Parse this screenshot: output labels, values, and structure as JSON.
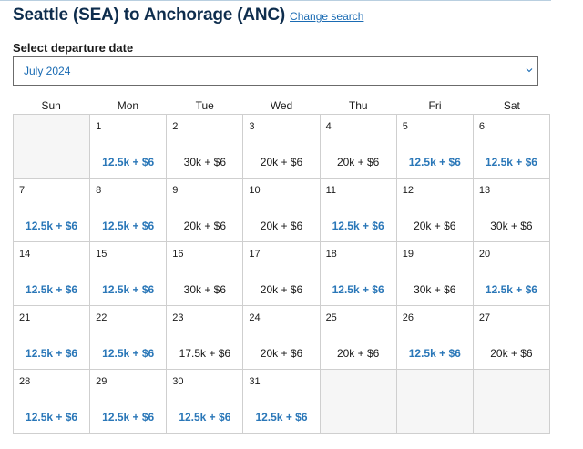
{
  "header": {
    "title": "Seattle (SEA) to Anchorage (ANC)",
    "change_link": "Change search"
  },
  "date_select": {
    "label": "Select departure date",
    "value": "July 2024"
  },
  "calendar": {
    "weekdays": [
      "Sun",
      "Mon",
      "Tue",
      "Wed",
      "Thu",
      "Fri",
      "Sat"
    ],
    "leading_blanks": 1,
    "trailing_blanks": 3,
    "low_fare_color": "#2a77b8",
    "days": [
      {
        "day": "1",
        "price": "12.5k + $6",
        "low": true
      },
      {
        "day": "2",
        "price": "30k + $6",
        "low": false
      },
      {
        "day": "3",
        "price": "20k + $6",
        "low": false
      },
      {
        "day": "4",
        "price": "20k + $6",
        "low": false
      },
      {
        "day": "5",
        "price": "12.5k + $6",
        "low": true
      },
      {
        "day": "6",
        "price": "12.5k + $6",
        "low": true
      },
      {
        "day": "7",
        "price": "12.5k + $6",
        "low": true
      },
      {
        "day": "8",
        "price": "12.5k + $6",
        "low": true
      },
      {
        "day": "9",
        "price": "20k + $6",
        "low": false
      },
      {
        "day": "10",
        "price": "20k + $6",
        "low": false
      },
      {
        "day": "11",
        "price": "12.5k + $6",
        "low": true
      },
      {
        "day": "12",
        "price": "20k + $6",
        "low": false
      },
      {
        "day": "13",
        "price": "30k + $6",
        "low": false
      },
      {
        "day": "14",
        "price": "12.5k + $6",
        "low": true
      },
      {
        "day": "15",
        "price": "12.5k + $6",
        "low": true
      },
      {
        "day": "16",
        "price": "30k + $6",
        "low": false
      },
      {
        "day": "17",
        "price": "20k + $6",
        "low": false
      },
      {
        "day": "18",
        "price": "12.5k + $6",
        "low": true
      },
      {
        "day": "19",
        "price": "30k + $6",
        "low": false
      },
      {
        "day": "20",
        "price": "12.5k + $6",
        "low": true
      },
      {
        "day": "21",
        "price": "12.5k + $6",
        "low": true
      },
      {
        "day": "22",
        "price": "12.5k + $6",
        "low": true
      },
      {
        "day": "23",
        "price": "17.5k + $6",
        "low": false
      },
      {
        "day": "24",
        "price": "20k + $6",
        "low": false
      },
      {
        "day": "25",
        "price": "20k + $6",
        "low": false
      },
      {
        "day": "26",
        "price": "12.5k + $6",
        "low": true
      },
      {
        "day": "27",
        "price": "20k + $6",
        "low": false
      },
      {
        "day": "28",
        "price": "12.5k + $6",
        "low": true
      },
      {
        "day": "29",
        "price": "12.5k + $6",
        "low": true
      },
      {
        "day": "30",
        "price": "12.5k + $6",
        "low": true
      },
      {
        "day": "31",
        "price": "12.5k + $6",
        "low": true
      }
    ]
  }
}
